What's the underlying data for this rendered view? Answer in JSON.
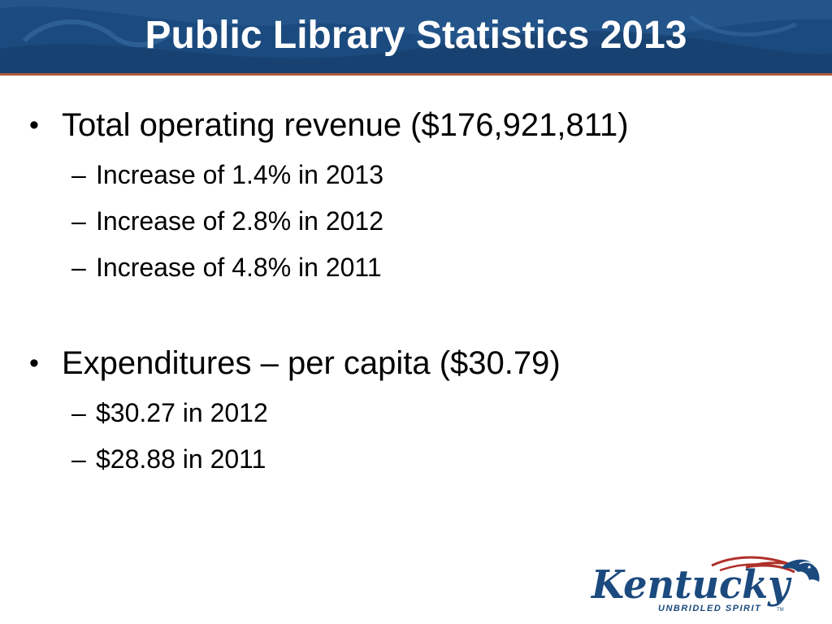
{
  "slide": {
    "title": "Public Library Statistics 2013",
    "bullets": [
      {
        "text": "Total operating revenue ($176,921,811)",
        "subs": [
          "Increase of 1.4% in 2013",
          "Increase of 2.8% in 2012",
          "Increase of 4.8% in 2011"
        ]
      },
      {
        "text": "Expenditures – per capita ($30.79)",
        "subs": [
          "$30.27 in 2012",
          "$28.88 in 2011"
        ]
      }
    ],
    "bullet_glyph": "•",
    "dash_glyph": "–",
    "logo": {
      "wordmark": "Kentucky",
      "tagline": "UNBRIDLED SPIRIT",
      "trademark": "TM"
    }
  },
  "colors": {
    "header_bg": "#1b4a7e",
    "header_rule": "#b05a3c",
    "title_text": "#ffffff",
    "body_text": "#000000",
    "logo_blue": "#1b4a7e",
    "logo_red": "#b0302a"
  }
}
